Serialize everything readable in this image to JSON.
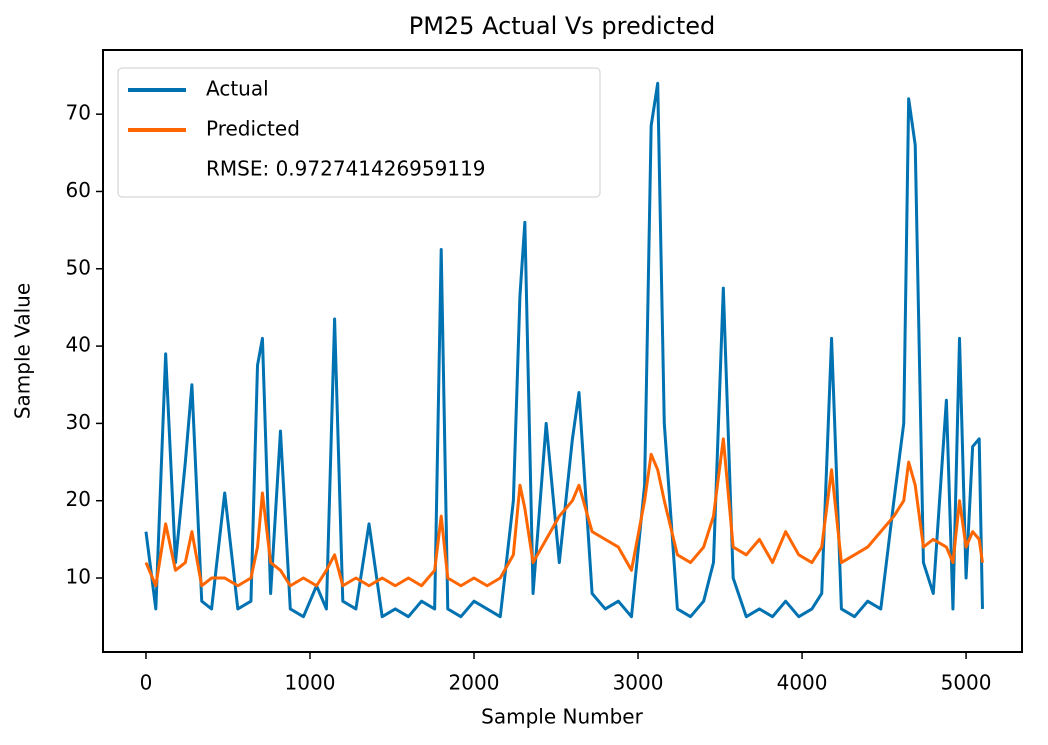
{
  "chart_data": {
    "type": "line",
    "title": "PM25 Actual Vs predicted",
    "x_label": "Sample Number",
    "y_label": "Sample Value",
    "x": [
      0,
      60,
      120,
      180,
      240,
      280,
      340,
      400,
      480,
      560,
      640,
      680,
      710,
      760,
      820,
      880,
      960,
      1040,
      1100,
      1150,
      1200,
      1280,
      1360,
      1440,
      1520,
      1600,
      1680,
      1760,
      1800,
      1840,
      1920,
      2000,
      2080,
      2160,
      2240,
      2280,
      2310,
      2360,
      2440,
      2520,
      2600,
      2640,
      2720,
      2800,
      2880,
      2960,
      3040,
      3080,
      3120,
      3160,
      3240,
      3320,
      3400,
      3460,
      3520,
      3580,
      3660,
      3740,
      3820,
      3900,
      3980,
      4060,
      4120,
      4180,
      4240,
      4320,
      4400,
      4480,
      4560,
      4620,
      4650,
      4690,
      4740,
      4800,
      4880,
      4920,
      4960,
      5000,
      5040,
      5080,
      5100
    ],
    "series": [
      {
        "name": "Actual",
        "color": "#0072b2",
        "values": [
          16,
          6,
          39,
          12,
          25,
          35,
          7,
          6,
          21,
          6,
          7,
          37.5,
          41,
          8,
          29,
          6,
          5,
          9,
          6,
          43.5,
          7,
          6,
          17,
          5,
          6,
          5,
          7,
          6,
          52.5,
          6,
          5,
          7,
          6,
          5,
          20,
          46.5,
          56,
          8,
          30,
          12,
          28,
          34,
          8,
          6,
          7,
          5,
          22,
          68.5,
          74,
          30,
          6,
          5,
          7,
          12,
          47.5,
          10,
          5,
          6,
          5,
          7,
          5,
          6,
          8,
          41,
          6,
          5,
          7,
          6,
          20,
          30,
          72,
          66,
          12,
          8,
          33,
          6,
          41,
          10,
          27,
          28,
          6
        ]
      },
      {
        "name": "Predicted",
        "color": "#ff6600",
        "values": [
          12,
          9,
          17,
          11,
          12,
          16,
          9,
          10,
          10,
          9,
          10,
          14,
          21,
          12,
          11,
          9,
          10,
          9,
          11,
          13,
          9,
          10,
          9,
          10,
          9,
          10,
          9,
          11,
          18,
          10,
          9,
          10,
          9,
          10,
          13,
          22,
          19,
          12,
          15,
          18,
          20,
          22,
          16,
          15,
          14,
          11,
          20,
          26,
          24,
          20,
          13,
          12,
          14,
          18,
          28,
          14,
          13,
          15,
          12,
          16,
          13,
          12,
          14,
          24,
          12,
          13,
          14,
          16,
          18,
          20,
          25,
          22,
          14,
          15,
          14,
          12,
          20,
          14,
          16,
          15,
          12
        ]
      }
    ],
    "legend_extra": "RMSE: 0.972741426959119",
    "legend": "upper left",
    "xlim": [
      -262,
      5341
    ],
    "ylim": [
      0.43,
      78.3
    ],
    "xticks": [
      0,
      1000,
      2000,
      3000,
      4000,
      5000
    ],
    "yticks": [
      10,
      20,
      30,
      40,
      50,
      60,
      70
    ]
  }
}
